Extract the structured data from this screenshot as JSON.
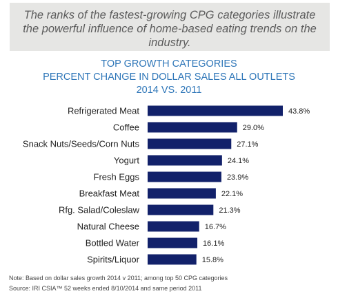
{
  "caption": "The ranks of the fastest-growing CPG categories illustrate the powerful influence of home-based eating trends on the industry.",
  "title_lines": [
    "TOP GROWTH CATEGORIES",
    "PERCENT CHANGE IN DOLLAR SALES ALL OUTLETS",
    "2014 VS. 2011"
  ],
  "notes": {
    "note": "Note: Based on dollar sales growth 2014 v 2011; among top 50 CPG categories",
    "source": "Source: IRI CSIA™ 52 weeks ended 8/10/2014 and same period 2011"
  },
  "colors": {
    "bar": "#12216a",
    "title": "#2e76b8",
    "caption_bg": "#e6e6e4"
  },
  "chart_data": {
    "type": "bar",
    "orientation": "horizontal",
    "categories": [
      "Refrigerated Meat",
      "Coffee",
      "Snack Nuts/Seeds/Corn Nuts",
      "Yogurt",
      "Fresh Eggs",
      "Breakfast Meat",
      "Rfg. Salad/Coleslaw",
      "Natural Cheese",
      "Bottled Water",
      "Spirits/Liquor"
    ],
    "values": [
      43.8,
      29.0,
      27.1,
      24.1,
      23.9,
      22.1,
      21.3,
      16.7,
      16.1,
      15.8
    ],
    "value_labels": [
      "43.8%",
      "29.0%",
      "27.1%",
      "24.1%",
      "23.9%",
      "22.1%",
      "21.3%",
      "16.7%",
      "16.1%",
      "15.8%"
    ],
    "title": "TOP GROWTH CATEGORIES PERCENT CHANGE IN DOLLAR SALES ALL OUTLETS 2014 VS. 2011",
    "xlabel": "",
    "ylabel": "",
    "xlim": [
      0,
      43.8
    ],
    "grid": false,
    "legend": "none"
  }
}
